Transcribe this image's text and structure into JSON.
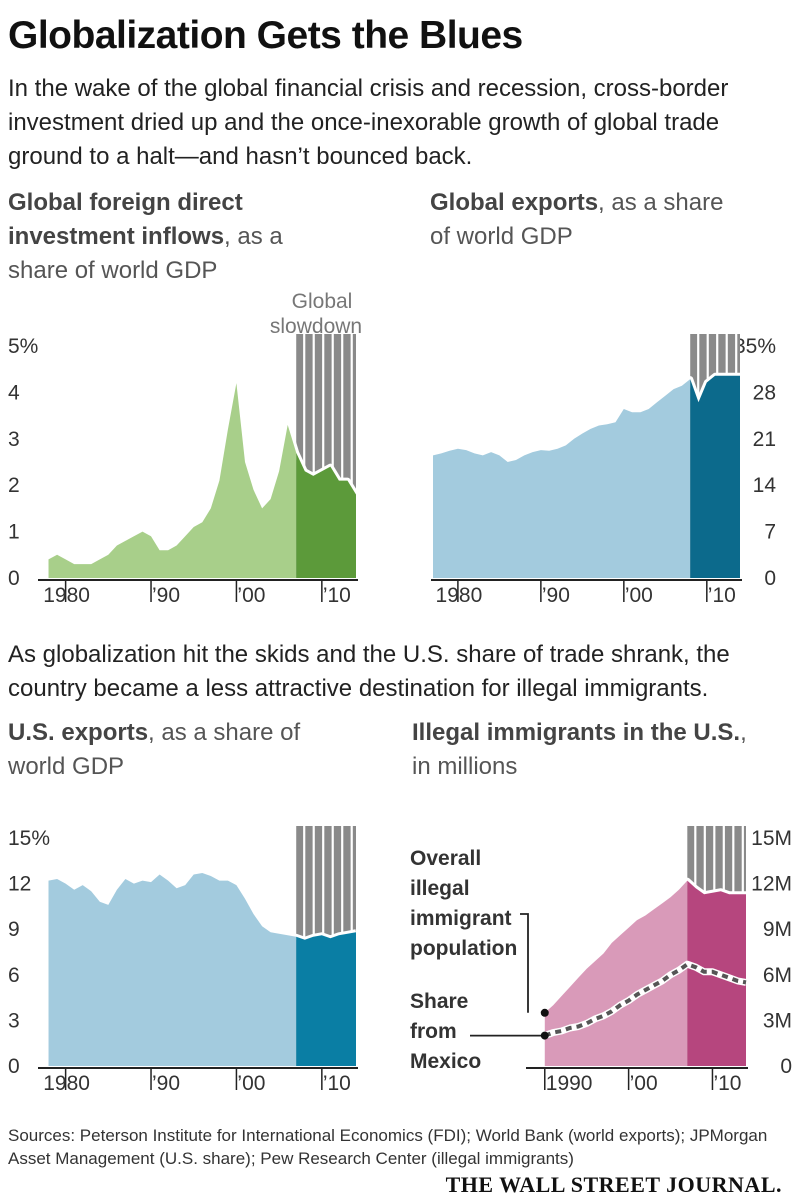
{
  "headline": "Globalization Gets the Blues",
  "intro": "In the wake of the global financial crisis and recession, cross-border investment dried up and the once-inexorable growth of global trade ground to a halt—and hasn’t bounced back.",
  "mid_text": "As globalization hit the skids and the U.S. share of trade shrank, the country became a less attractive destination for illegal immigrants.",
  "sources": "Sources: Peterson Institute for International Economics (FDI); World Bank (world exports); JPMorgan Asset Management (U.S. share); Pew Research Center (illegal immigrants)",
  "publisher": "THE WALL STREET JOURNAL.",
  "colors": {
    "fdi_light": "#a8cf8a",
    "fdi_dark": "#5c9a3a",
    "blue_light": "#a3cbde",
    "blue_dark": "#0a7ea4",
    "world_dark": "#0c6a8c",
    "pink_light": "#d99ab9",
    "pink_dark": "#b6467e",
    "slowdown": "#8a8a8a"
  },
  "chart_data": [
    {
      "id": "fdi",
      "type": "area",
      "title_bold": "Global foreign direct investment inflows",
      "title_rest": ", as a share of world GDP",
      "yticks": [
        "5%",
        "4",
        "3",
        "2",
        "1",
        "0"
      ],
      "ytick_values": [
        5,
        4,
        3,
        2,
        1,
        0
      ],
      "ylim": [
        0,
        5
      ],
      "xlim": [
        1977,
        2014
      ],
      "xticks": [
        "1980",
        "’90",
        "’00",
        "’10"
      ],
      "xtick_values": [
        1980,
        1990,
        2000,
        2010
      ],
      "shade_start": 2007,
      "shade_end": 2014,
      "shade_label": "Global slowdown",
      "x": [
        1978,
        1979,
        1980,
        1981,
        1982,
        1983,
        1984,
        1985,
        1986,
        1987,
        1988,
        1989,
        1990,
        1991,
        1992,
        1993,
        1994,
        1995,
        1996,
        1997,
        1998,
        1999,
        2000,
        2001,
        2002,
        2003,
        2004,
        2005,
        2006,
        2007,
        2008,
        2009,
        2010,
        2011,
        2012,
        2013,
        2014
      ],
      "values": [
        0.4,
        0.5,
        0.4,
        0.3,
        0.3,
        0.3,
        0.4,
        0.5,
        0.7,
        0.8,
        0.9,
        1.0,
        0.9,
        0.6,
        0.6,
        0.7,
        0.9,
        1.1,
        1.2,
        1.5,
        2.1,
        3.2,
        4.2,
        2.5,
        1.9,
        1.5,
        1.7,
        2.3,
        3.3,
        2.7,
        2.3,
        2.2,
        2.3,
        2.4,
        2.1,
        2.1,
        1.8
      ]
    },
    {
      "id": "world_exports",
      "type": "area",
      "title_bold": "Global exports",
      "title_rest": ", as a share of world GDP",
      "yticks": [
        "35%",
        "28",
        "21",
        "14",
        "7",
        "0"
      ],
      "ytick_values": [
        35,
        28,
        21,
        14,
        7,
        0
      ],
      "ylim": [
        0,
        35
      ],
      "xlim": [
        1977,
        2014
      ],
      "xticks": [
        "1980",
        "’90",
        "’00",
        "’10"
      ],
      "xtick_values": [
        1980,
        1990,
        2000,
        2010
      ],
      "shade_start": 2008,
      "shade_end": 2014,
      "x": [
        1977,
        1978,
        1979,
        1980,
        1981,
        1982,
        1983,
        1984,
        1985,
        1986,
        1987,
        1988,
        1989,
        1990,
        1991,
        1992,
        1993,
        1994,
        1995,
        1996,
        1997,
        1998,
        1999,
        2000,
        2001,
        2002,
        2003,
        2004,
        2005,
        2006,
        2007,
        2008,
        2009,
        2010,
        2011,
        2012,
        2013,
        2014
      ],
      "values": [
        18.5,
        18.8,
        19.2,
        19.5,
        19.3,
        18.8,
        18.5,
        19.0,
        18.5,
        17.5,
        17.8,
        18.5,
        19.0,
        19.3,
        19.2,
        19.5,
        20.0,
        21.0,
        21.8,
        22.5,
        23.0,
        23.2,
        23.5,
        25.5,
        25.0,
        25.0,
        25.5,
        26.5,
        27.5,
        28.5,
        29.0,
        30.0,
        26.5,
        29.5,
        30.5,
        30.5,
        30.5,
        30.5
      ]
    },
    {
      "id": "us_exports",
      "type": "area",
      "title_bold": "U.S. exports",
      "title_rest": ", as a share of world GDP",
      "yticks": [
        "15%",
        "12",
        "9",
        "6",
        "3",
        "0"
      ],
      "ytick_values": [
        15,
        12,
        9,
        6,
        3,
        0
      ],
      "ylim": [
        0,
        15
      ],
      "xlim": [
        1977,
        2014
      ],
      "xticks": [
        "1980",
        "’90",
        "’00",
        "’10"
      ],
      "xtick_values": [
        1980,
        1990,
        2000,
        2010
      ],
      "shade_start": 2007,
      "shade_end": 2014,
      "x": [
        1978,
        1979,
        1980,
        1981,
        1982,
        1983,
        1984,
        1985,
        1986,
        1987,
        1988,
        1989,
        1990,
        1991,
        1992,
        1993,
        1994,
        1995,
        1996,
        1997,
        1998,
        1999,
        2000,
        2001,
        2002,
        2003,
        2004,
        2005,
        2006,
        2007,
        2008,
        2009,
        2010,
        2011,
        2012,
        2013,
        2014
      ],
      "values": [
        12.2,
        12.3,
        12.0,
        11.6,
        11.9,
        11.5,
        10.8,
        10.6,
        11.6,
        12.3,
        12.0,
        12.2,
        12.1,
        12.6,
        12.2,
        11.7,
        11.9,
        12.6,
        12.7,
        12.5,
        12.2,
        12.2,
        11.9,
        11.0,
        10.0,
        9.2,
        8.8,
        8.7,
        8.6,
        8.5,
        8.3,
        8.5,
        8.6,
        8.4,
        8.6,
        8.7,
        8.8
      ]
    },
    {
      "id": "illegal_immigrants",
      "type": "area",
      "title_bold": "Illegal immigrants in the U.S.",
      "title_rest": ", in millions",
      "yticks": [
        "15M",
        "12M",
        "9M",
        "6M",
        "3M",
        "0"
      ],
      "ytick_values": [
        15,
        12,
        9,
        6,
        3,
        0
      ],
      "ylim": [
        0,
        15
      ],
      "xlim": [
        1988,
        2014
      ],
      "xticks": [
        "1990",
        "’00",
        "’10"
      ],
      "xtick_values": [
        1990,
        2000,
        2010
      ],
      "shade_start": 2007,
      "shade_end": 2014,
      "x": [
        1990,
        1991,
        1992,
        1993,
        1994,
        1995,
        1996,
        1997,
        1998,
        1999,
        2000,
        2001,
        2002,
        2003,
        2004,
        2005,
        2006,
        2007,
        2008,
        2009,
        2010,
        2011,
        2012,
        2013,
        2014
      ],
      "series": [
        {
          "name": "Overall illegal immigrant population",
          "values": [
            3.5,
            4.0,
            4.6,
            5.2,
            5.8,
            6.4,
            6.9,
            7.4,
            8.1,
            8.6,
            9.1,
            9.6,
            9.9,
            10.3,
            10.7,
            11.1,
            11.6,
            12.2,
            11.7,
            11.3,
            11.4,
            11.5,
            11.3,
            11.3,
            11.3
          ]
        },
        {
          "name": "Share from Mexico",
          "values": [
            2.0,
            2.2,
            2.3,
            2.5,
            2.6,
            2.8,
            3.1,
            3.3,
            3.6,
            4.0,
            4.3,
            4.7,
            5.0,
            5.3,
            5.6,
            6.0,
            6.3,
            6.7,
            6.5,
            6.2,
            6.2,
            6.0,
            5.8,
            5.6,
            5.5
          ]
        }
      ],
      "labels": {
        "overall": [
          "Overall",
          "illegal",
          "immigrant",
          "population"
        ],
        "mexico": [
          "Share",
          "from",
          "Mexico"
        ]
      }
    }
  ]
}
